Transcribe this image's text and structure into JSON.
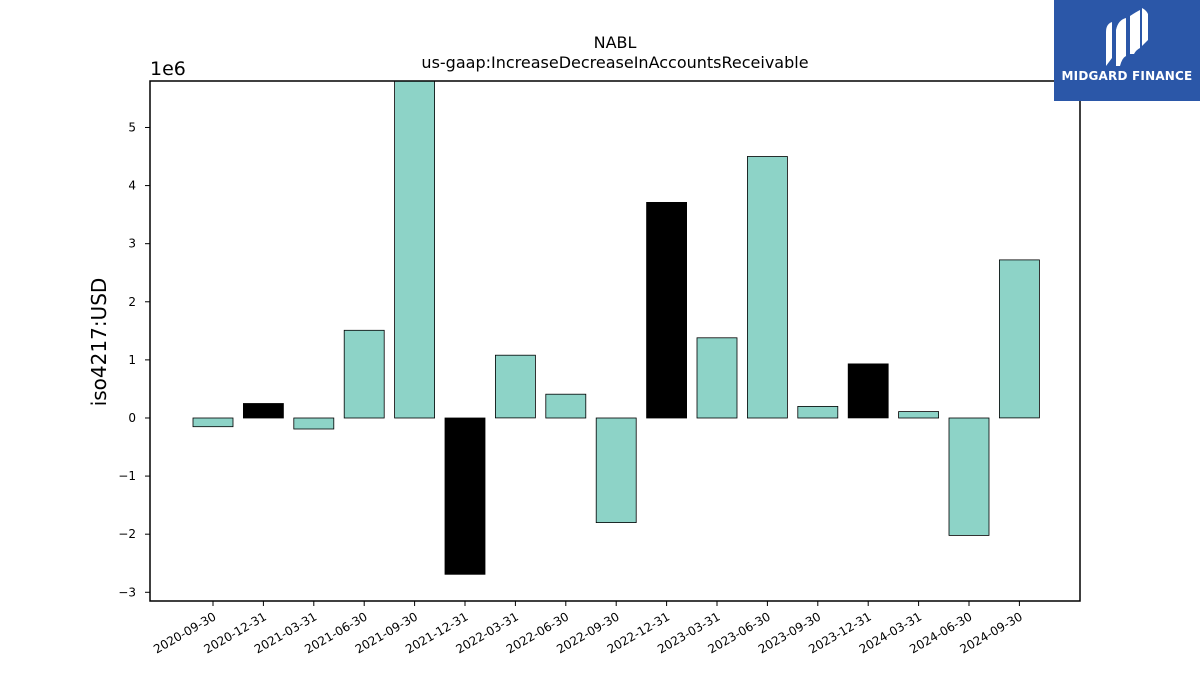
{
  "chart_data": {
    "type": "bar",
    "title": "NABL",
    "subtitle": "us-gaap:IncreaseDecreaseInAccountsReceivable",
    "xlabel": "",
    "ylabel": "iso4217:USD",
    "offset_text": "1e6",
    "ylim": [
      -3150000,
      5800000
    ],
    "yticks": [
      -3,
      -2,
      -1,
      0,
      1,
      2,
      3,
      4,
      5
    ],
    "ytick_labels": [
      "−3",
      "−2",
      "−1",
      "0",
      "1",
      "2",
      "3",
      "4",
      "5"
    ],
    "grid": false,
    "legend": "none",
    "categories": [
      "2020-09-30",
      "2020-12-31",
      "2021-03-31",
      "2021-06-30",
      "2021-09-30",
      "2021-12-31",
      "2022-03-31",
      "2022-06-30",
      "2022-09-30",
      "2022-12-31",
      "2023-03-31",
      "2023-06-30",
      "2023-09-30",
      "2023-12-31",
      "2024-03-31",
      "2024-06-30",
      "2024-09-30"
    ],
    "values": [
      -150000,
      250000,
      -190000,
      1510000,
      5800000,
      -2690000,
      1080000,
      410000,
      -1800000,
      3710000,
      1380000,
      4500000,
      200000,
      930000,
      110000,
      -2020000,
      2720000
    ],
    "colors": [
      "#8dd3c7",
      "#000000",
      "#8dd3c7",
      "#8dd3c7",
      "#8dd3c7",
      "#000000",
      "#8dd3c7",
      "#8dd3c7",
      "#8dd3c7",
      "#000000",
      "#8dd3c7",
      "#8dd3c7",
      "#8dd3c7",
      "#000000",
      "#8dd3c7",
      "#8dd3c7",
      "#8dd3c7"
    ]
  },
  "logo": {
    "text": "MIDGARD FINANCE",
    "background": "#2b57a8"
  }
}
